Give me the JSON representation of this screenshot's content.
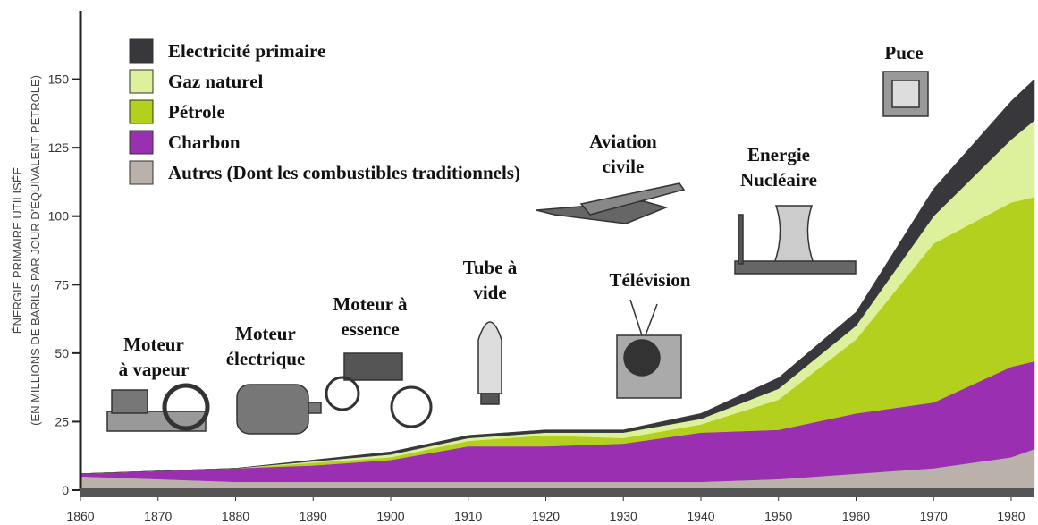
{
  "chart_data": {
    "type": "stacked-area",
    "y_label_lines": [
      "ÉNERGIE PRIMAIRE UTILISÉE",
      "(EN MILLIONS DE BARILS PAR JOUR D'ÉQUIVALENT PÉTROLE)"
    ],
    "x": [
      1860,
      1870,
      1880,
      1890,
      1900,
      1910,
      1920,
      1930,
      1940,
      1950,
      1960,
      1970,
      1980,
      1983
    ],
    "series": [
      {
        "name": "Autres (Dont les combustibles traditionnels)",
        "color": "#b9b1aa",
        "values": [
          5,
          4,
          3,
          3,
          3,
          3,
          3,
          3,
          3,
          4,
          6,
          8,
          12,
          15
        ]
      },
      {
        "name": "Charbon",
        "color": "#9b2fb2",
        "values": [
          1,
          3,
          5,
          6,
          8,
          13,
          13,
          14,
          18,
          18,
          22,
          24,
          33,
          32
        ]
      },
      {
        "name": "Pétrole",
        "color": "#b3d01f",
        "values": [
          0,
          0,
          0,
          1,
          1,
          2,
          4,
          2,
          3,
          11,
          27,
          58,
          60,
          60
        ]
      },
      {
        "name": "Gaz naturel",
        "color": "#ddf09c",
        "values": [
          0,
          0,
          0,
          0.5,
          1,
          1,
          1,
          2,
          2,
          4,
          5,
          10,
          23,
          28
        ]
      },
      {
        "name": "Electricité primaire",
        "color": "#38383c",
        "values": [
          0,
          0,
          0,
          0.5,
          1,
          1,
          1,
          1,
          2,
          4,
          5,
          10,
          14,
          15
        ]
      }
    ],
    "xlim": [
      1860,
      1983
    ],
    "xticks": [
      1860,
      1870,
      1880,
      1890,
      1900,
      1910,
      1920,
      1930,
      1940,
      1950,
      1960,
      1970,
      1980
    ],
    "ylim": [
      0,
      175
    ],
    "yticks": [
      0,
      25,
      50,
      75,
      100,
      125,
      150
    ],
    "annotations": [
      {
        "lines": [
          "Moteur",
          "à vapeur"
        ]
      },
      {
        "lines": [
          "Moteur",
          "électrique"
        ]
      },
      {
        "lines": [
          "Moteur à",
          "essence"
        ]
      },
      {
        "lines": [
          "Tube à",
          "vide"
        ]
      },
      {
        "lines": [
          "Télévision"
        ]
      },
      {
        "lines": [
          "Aviation",
          "civile"
        ]
      },
      {
        "lines": [
          "Energie",
          "Nucléaire"
        ]
      },
      {
        "lines": [
          "Puce"
        ]
      }
    ]
  }
}
